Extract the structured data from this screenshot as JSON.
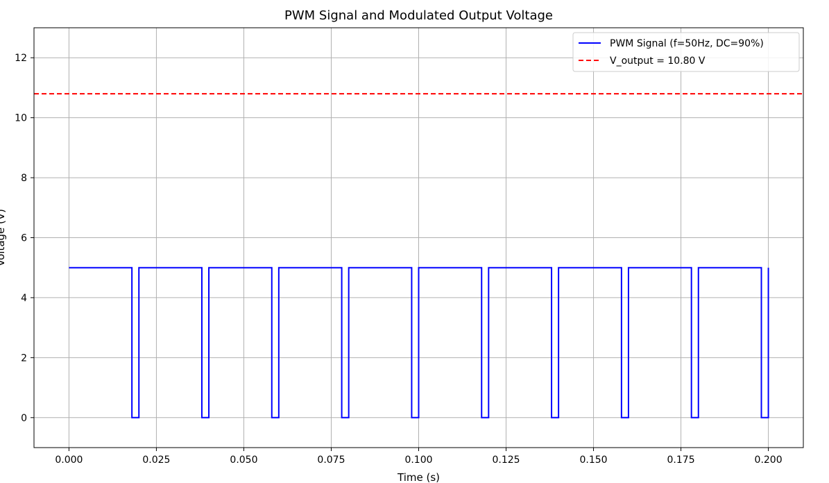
{
  "chart_data": {
    "type": "line",
    "title": "PWM Signal and Modulated Output Voltage",
    "xlabel": "Time (s)",
    "ylabel": "Voltage (V)",
    "xlim": [
      -0.01,
      0.21
    ],
    "ylim": [
      -1.0,
      13.0
    ],
    "xticks": [
      0.0,
      0.025,
      0.05,
      0.075,
      0.1,
      0.125,
      0.15,
      0.175,
      0.2
    ],
    "xtick_labels": [
      "0.000",
      "0.025",
      "0.050",
      "0.075",
      "0.100",
      "0.125",
      "0.150",
      "0.175",
      "0.200"
    ],
    "yticks": [
      0,
      2,
      4,
      6,
      8,
      10,
      12
    ],
    "ytick_labels": [
      "0",
      "2",
      "4",
      "6",
      "8",
      "10",
      "12"
    ],
    "grid": true,
    "legend_position": "top-right",
    "series": [
      {
        "name": "PWM Signal (f=50Hz, DC=90%)",
        "kind": "step",
        "color": "#0000ff",
        "line_style": "solid",
        "high": 5,
        "low": 0,
        "frequency_hz": 50,
        "duty_cycle": 0.9,
        "t_start": 0.0,
        "t_end": 0.2,
        "values": [
          [
            0.0,
            5
          ],
          [
            0.018,
            5
          ],
          [
            0.018,
            0
          ],
          [
            0.02,
            0
          ],
          [
            0.02,
            5
          ],
          [
            0.038,
            5
          ],
          [
            0.038,
            0
          ],
          [
            0.04,
            0
          ],
          [
            0.04,
            5
          ],
          [
            0.058,
            5
          ],
          [
            0.058,
            0
          ],
          [
            0.06,
            0
          ],
          [
            0.06,
            5
          ],
          [
            0.078,
            5
          ],
          [
            0.078,
            0
          ],
          [
            0.08,
            0
          ],
          [
            0.08,
            5
          ],
          [
            0.098,
            5
          ],
          [
            0.098,
            0
          ],
          [
            0.1,
            0
          ],
          [
            0.1,
            5
          ],
          [
            0.118,
            5
          ],
          [
            0.118,
            0
          ],
          [
            0.12,
            0
          ],
          [
            0.12,
            5
          ],
          [
            0.138,
            5
          ],
          [
            0.138,
            0
          ],
          [
            0.14,
            0
          ],
          [
            0.14,
            5
          ],
          [
            0.158,
            5
          ],
          [
            0.158,
            0
          ],
          [
            0.16,
            0
          ],
          [
            0.16,
            5
          ],
          [
            0.178,
            5
          ],
          [
            0.178,
            0
          ],
          [
            0.18,
            0
          ],
          [
            0.18,
            5
          ],
          [
            0.198,
            5
          ],
          [
            0.198,
            0
          ],
          [
            0.2,
            0
          ],
          [
            0.2,
            5
          ]
        ]
      },
      {
        "name": "V_output = 10.80 V",
        "kind": "hline",
        "color": "#ff0000",
        "line_style": "dashed",
        "value": 10.8
      }
    ]
  }
}
